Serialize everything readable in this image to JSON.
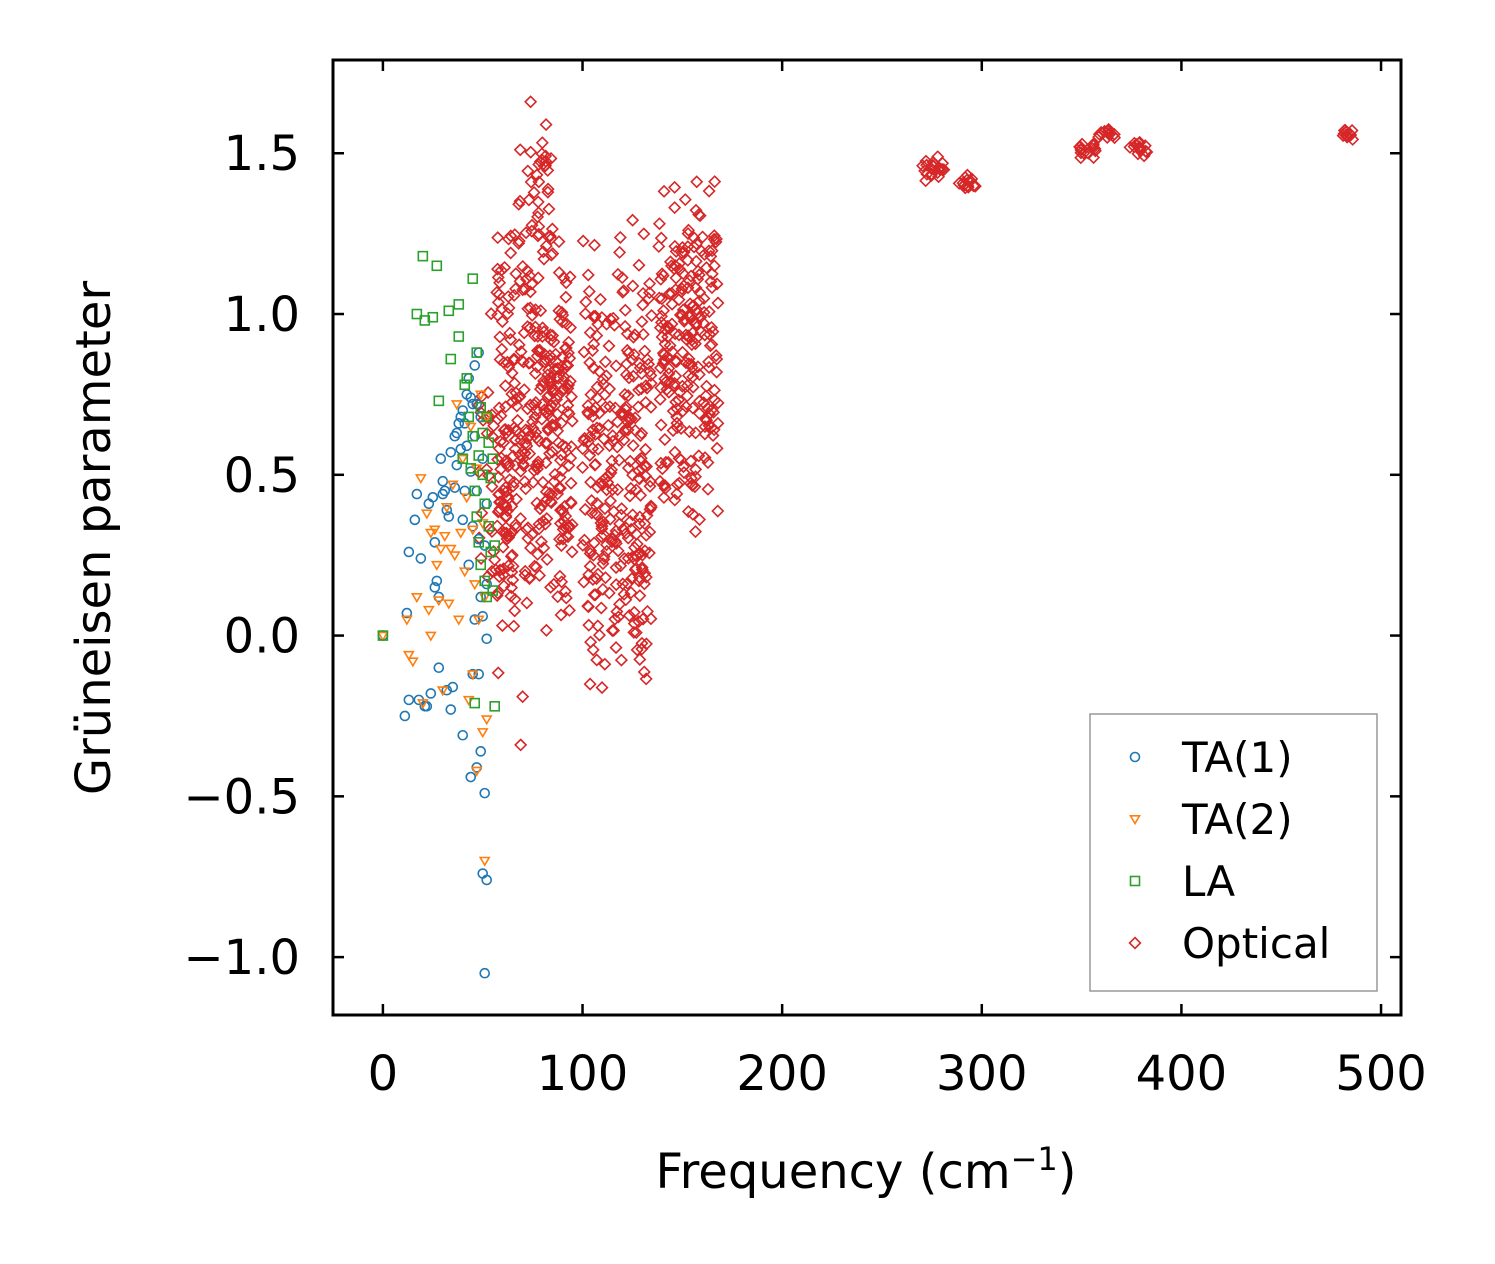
{
  "chart_data": {
    "type": "scatter",
    "title": "",
    "xlabel": "Frequency (cm",
    "xlabel_sup": "−1",
    "xlabel_close": ")",
    "ylabel": "Grüneisen parameter",
    "xlim": [
      -25,
      510
    ],
    "ylim": [
      -1.18,
      1.79
    ],
    "xticks": [
      0,
      100,
      200,
      300,
      400,
      500
    ],
    "xtick_labels": [
      "0",
      "100",
      "200",
      "300",
      "400",
      "500"
    ],
    "yticks": [
      -1.0,
      -0.5,
      0.0,
      0.5,
      1.0,
      1.5
    ],
    "ytick_labels": [
      "−1.0",
      "−0.5",
      "0.0",
      "0.5",
      "1.0",
      "1.5"
    ],
    "grid": false,
    "legend_position": "bottom-right",
    "series": [
      {
        "name": "TA(1)",
        "marker": "circle",
        "color": "#1f77b4",
        "points": [
          [
            0,
            0
          ],
          [
            11,
            -0.25
          ],
          [
            12,
            0.07
          ],
          [
            13,
            -0.2
          ],
          [
            13,
            0.26
          ],
          [
            16,
            0.36
          ],
          [
            17,
            0.44
          ],
          [
            18,
            -0.2
          ],
          [
            19,
            0.24
          ],
          [
            21,
            -0.22
          ],
          [
            22,
            -0.22
          ],
          [
            23,
            0.41
          ],
          [
            24,
            -0.18
          ],
          [
            25,
            0.43
          ],
          [
            26,
            0.15
          ],
          [
            26,
            0.29
          ],
          [
            27,
            0.17
          ],
          [
            28,
            0.12
          ],
          [
            28,
            -0.1
          ],
          [
            29,
            0.55
          ],
          [
            30,
            0.44
          ],
          [
            30,
            0.48
          ],
          [
            31,
            0.45
          ],
          [
            32,
            0.39
          ],
          [
            32,
            -0.17
          ],
          [
            33,
            0.37
          ],
          [
            34,
            -0.23
          ],
          [
            34,
            0.57
          ],
          [
            35,
            -0.16
          ],
          [
            36,
            0.62
          ],
          [
            36,
            0.46
          ],
          [
            37,
            0.63
          ],
          [
            37,
            0.53
          ],
          [
            38,
            0.66
          ],
          [
            39,
            0.68
          ],
          [
            39,
            0.58
          ],
          [
            40,
            0.7
          ],
          [
            40,
            0.36
          ],
          [
            40,
            -0.31
          ],
          [
            41,
            0.66
          ],
          [
            41,
            0.45
          ],
          [
            42,
            0.59
          ],
          [
            42,
            0.75
          ],
          [
            43,
            0.8
          ],
          [
            43,
            0.22
          ],
          [
            44,
            0.74
          ],
          [
            44,
            0.51
          ],
          [
            44,
            -0.44
          ],
          [
            45,
            0.72
          ],
          [
            45,
            0.34
          ],
          [
            45,
            -0.12
          ],
          [
            46,
            0.84
          ],
          [
            46,
            0.62
          ],
          [
            46,
            0.05
          ],
          [
            47,
            0.72
          ],
          [
            47,
            0.45
          ],
          [
            47,
            -0.41
          ],
          [
            48,
            0.88
          ],
          [
            48,
            0.3
          ],
          [
            48,
            -0.12
          ],
          [
            49,
            0.68
          ],
          [
            49,
            0.12
          ],
          [
            49,
            -0.36
          ],
          [
            50,
            0.55
          ],
          [
            50,
            0.06
          ],
          [
            50,
            -0.74
          ],
          [
            51,
            0.28
          ],
          [
            51,
            -0.49
          ],
          [
            51,
            -1.05
          ],
          [
            52,
            -0.76
          ],
          [
            52,
            0.16
          ],
          [
            52,
            0.41
          ],
          [
            52,
            -0.01
          ]
        ]
      },
      {
        "name": "TA(2)",
        "marker": "triangle-down",
        "color": "#ff7f0e",
        "points": [
          [
            0,
            0
          ],
          [
            12,
            0.05
          ],
          [
            13,
            -0.06
          ],
          [
            15,
            -0.08
          ],
          [
            17,
            0.12
          ],
          [
            19,
            0.49
          ],
          [
            20,
            -0.21
          ],
          [
            22,
            0.38
          ],
          [
            23,
            0.08
          ],
          [
            24,
            0.32
          ],
          [
            24,
            0
          ],
          [
            26,
            0.33
          ],
          [
            27,
            0.22
          ],
          [
            28,
            0.11
          ],
          [
            29,
            0.27
          ],
          [
            30,
            -0.17
          ],
          [
            31,
            0.31
          ],
          [
            32,
            0.4
          ],
          [
            33,
            0.1
          ],
          [
            34,
            0.27
          ],
          [
            35,
            0.47
          ],
          [
            36,
            0.25
          ],
          [
            37,
            0.72
          ],
          [
            38,
            0.05
          ],
          [
            39,
            0.32
          ],
          [
            40,
            0.55
          ],
          [
            41,
            0.2
          ],
          [
            42,
            0.43
          ],
          [
            43,
            -0.2
          ],
          [
            44,
            0.65
          ],
          [
            45,
            -0.12
          ],
          [
            45,
            0.33
          ],
          [
            46,
            0.16
          ],
          [
            47,
            -0.42
          ],
          [
            47,
            0.52
          ],
          [
            48,
            0.05
          ],
          [
            49,
            0.75
          ],
          [
            50,
            -0.3
          ],
          [
            50,
            0.35
          ],
          [
            51,
            -0.7
          ],
          [
            51,
            0.12
          ],
          [
            52,
            0.68
          ],
          [
            52,
            -0.26
          ]
        ]
      },
      {
        "name": "LA",
        "marker": "square",
        "color": "#2ca02c",
        "points": [
          [
            0,
            0
          ],
          [
            17,
            1.0
          ],
          [
            20,
            1.18
          ],
          [
            21,
            0.98
          ],
          [
            25,
            0.99
          ],
          [
            27,
            1.15
          ],
          [
            28,
            0.73
          ],
          [
            33,
            1.01
          ],
          [
            34,
            0.86
          ],
          [
            38,
            1.03
          ],
          [
            38,
            0.93
          ],
          [
            40,
            0.55
          ],
          [
            41,
            0.78
          ],
          [
            42,
            0.8
          ],
          [
            43,
            0.68
          ],
          [
            44,
            0.52
          ],
          [
            45,
            1.11
          ],
          [
            45,
            0.62
          ],
          [
            46,
            0.45
          ],
          [
            46,
            -0.21
          ],
          [
            47,
            0.88
          ],
          [
            47,
            0.37
          ],
          [
            48,
            0.56
          ],
          [
            48,
            0.29
          ],
          [
            49,
            0.71
          ],
          [
            49,
            0.22
          ],
          [
            50,
            0.63
          ],
          [
            50,
            0.5
          ],
          [
            51,
            0.41
          ],
          [
            51,
            0.17
          ],
          [
            52,
            0.68
          ],
          [
            52,
            0.12
          ],
          [
            53,
            0.6
          ],
          [
            53,
            0.34
          ],
          [
            54,
            0.49
          ],
          [
            54,
            0.26
          ],
          [
            55,
            0.55
          ],
          [
            55,
            0.14
          ],
          [
            56,
            0.28
          ],
          [
            56,
            -0.22
          ]
        ]
      },
      {
        "name": "Optical",
        "marker": "diamond",
        "color": "#d62728",
        "clusters": [
          {
            "x_range": [
              48,
              68
            ],
            "y_range": [
              -0.15,
              1.02
            ],
            "count": 60
          },
          {
            "x_range": [
              57,
              95
            ],
            "y_range": [
              -0.05,
              1.33
            ],
            "count": 340
          },
          {
            "x_range": [
              68,
              85
            ],
            "y_range": [
              1.1,
              1.66
            ],
            "count": 40
          },
          {
            "x_range": [
              100,
              135
            ],
            "y_range": [
              -0.27,
              1.33
            ],
            "count": 300
          },
          {
            "x_range": [
              138,
              168
            ],
            "y_range": [
              0.3,
              1.47
            ],
            "count": 240
          },
          {
            "x_range": [
              270,
              282
            ],
            "y_range": [
              1.41,
              1.5
            ],
            "count": 20
          },
          {
            "x_range": [
              288,
              297
            ],
            "y_range": [
              1.38,
              1.44
            ],
            "count": 15
          },
          {
            "x_range": [
              349,
              358
            ],
            "y_range": [
              1.48,
              1.55
            ],
            "count": 15
          },
          {
            "x_range": [
              358,
              367
            ],
            "y_range": [
              1.54,
              1.58
            ],
            "count": 12
          },
          {
            "x_range": [
              374,
              383
            ],
            "y_range": [
              1.49,
              1.55
            ],
            "count": 15
          },
          {
            "x_range": [
              480,
              488
            ],
            "y_range": [
              1.54,
              1.58
            ],
            "count": 12
          }
        ],
        "points": [
          [
            69,
            -0.34
          ],
          [
            64,
            1.19
          ],
          [
            68,
            1.22
          ],
          [
            70,
            -0.19
          ],
          [
            72,
            0.33
          ],
          [
            74,
            1.66
          ],
          [
            84,
            0.15
          ]
        ]
      }
    ]
  }
}
